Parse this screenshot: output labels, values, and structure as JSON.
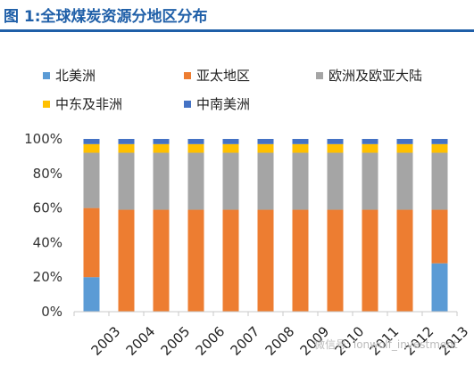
{
  "title": "图 1:全球煤炭资源分地区分布",
  "watermark": "微信号: lonwolf_investment",
  "chart_data": {
    "type": "bar",
    "stacked": true,
    "categories": [
      "2003",
      "2004",
      "2005",
      "2006",
      "2007",
      "2008",
      "2009",
      "2010",
      "2011",
      "2012",
      "2013"
    ],
    "series": [
      {
        "name": "北美洲",
        "color": "#5b9bd5",
        "values": [
          20,
          0,
          0,
          0,
          0,
          0,
          0,
          0,
          0,
          0,
          28
        ]
      },
      {
        "name": "亚太地区",
        "color": "#ed7d31",
        "values": [
          40,
          59,
          59,
          59,
          59,
          59,
          59,
          59,
          59,
          59,
          31
        ]
      },
      {
        "name": "欧洲及欧亚大陆",
        "color": "#a5a5a5",
        "values": [
          32,
          33,
          33,
          33,
          33,
          33,
          33,
          33,
          33,
          33,
          33
        ]
      },
      {
        "name": "中东及非洲",
        "color": "#ffc000",
        "values": [
          5,
          5,
          5,
          5,
          5,
          5,
          5,
          5,
          5,
          5,
          5
        ]
      },
      {
        "name": "中南美洲",
        "color": "#4472c4",
        "values": [
          3,
          3,
          3,
          3,
          3,
          3,
          3,
          3,
          3,
          3,
          3
        ]
      }
    ],
    "y_ticks": [
      "0%",
      "20%",
      "40%",
      "60%",
      "80%",
      "100%"
    ],
    "ylim": [
      0,
      100
    ],
    "grid": false,
    "legend_position": "top"
  }
}
